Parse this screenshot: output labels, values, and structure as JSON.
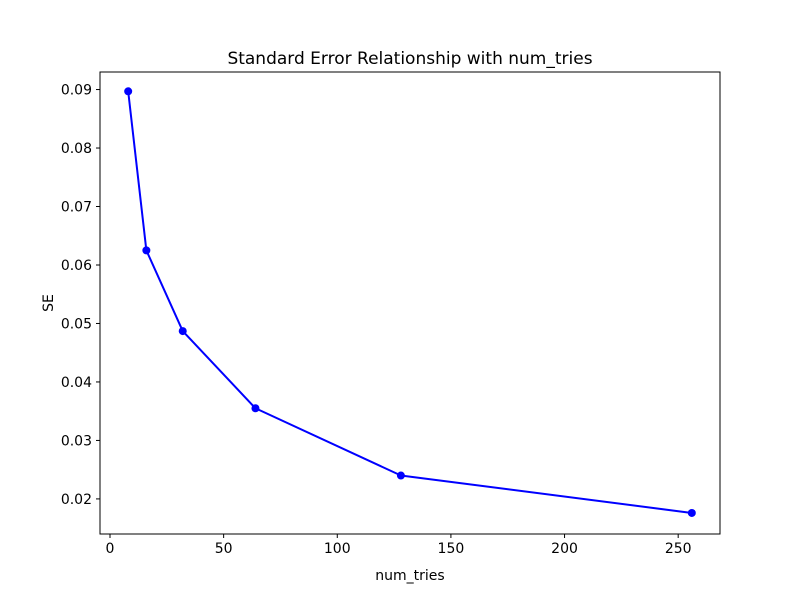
{
  "chart_data": {
    "type": "line",
    "title": "Standard Error Relationship with num_tries",
    "xlabel": "num_tries",
    "ylabel": "SE",
    "x": [
      8,
      16,
      32,
      64,
      128,
      256
    ],
    "y": [
      0.0897,
      0.0625,
      0.0487,
      0.0355,
      0.024,
      0.0176
    ],
    "series_name": "SE",
    "line_color": "#0000ff",
    "marker": "circle",
    "marker_radius": 4,
    "line_width": 2,
    "xticks": [
      0,
      50,
      100,
      150,
      200,
      250
    ],
    "xtick_labels": [
      "0",
      "50",
      "100",
      "150",
      "200",
      "250"
    ],
    "yticks": [
      0.02,
      0.03,
      0.04,
      0.05,
      0.06,
      0.07,
      0.08,
      0.09
    ],
    "ytick_labels": [
      "0.02",
      "0.03",
      "0.04",
      "0.05",
      "0.06",
      "0.07",
      "0.08",
      "0.09"
    ],
    "xlim": [
      -4.4,
      268.4
    ],
    "ylim": [
      0.014,
      0.093
    ],
    "grid": false,
    "legend": null,
    "background_color": "#ffffff",
    "spine_color": "#000000"
  }
}
